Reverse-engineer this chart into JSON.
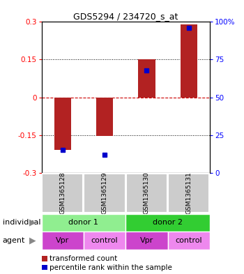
{
  "title": "GDS5294 / 234720_s_at",
  "samples": [
    "GSM1365128",
    "GSM1365129",
    "GSM1365130",
    "GSM1365131"
  ],
  "bar_values": [
    -0.21,
    -0.155,
    0.15,
    0.29
  ],
  "dot_values_pct": [
    15,
    12,
    68,
    96
  ],
  "ylim_left": [
    -0.3,
    0.3
  ],
  "ylim_right": [
    0,
    100
  ],
  "yticks_left": [
    -0.3,
    -0.15,
    0,
    0.15,
    0.3
  ],
  "yticks_right": [
    0,
    25,
    50,
    75,
    100
  ],
  "ytick_labels_left": [
    "-0.3",
    "-0.15",
    "0",
    "0.15",
    "0.3"
  ],
  "ytick_labels_right": [
    "0",
    "25",
    "50",
    "75",
    "100%"
  ],
  "bar_color": "#b22222",
  "dot_color": "#0000cc",
  "zero_line_color": "#cc0000",
  "individual_labels": [
    "donor 1",
    "donor 2"
  ],
  "individual_colors": [
    "#90ee90",
    "#32cd32"
  ],
  "agent_labels": [
    "Vpr",
    "control",
    "Vpr",
    "control"
  ],
  "agent_colors": [
    "#cc44cc",
    "#ee88ee",
    "#cc44cc",
    "#ee88ee"
  ],
  "legend_bar_label": "transformed count",
  "legend_dot_label": "percentile rank within the sample",
  "sample_bg_color": "#cccccc",
  "left_label": "individual",
  "agent_row_label": "agent"
}
